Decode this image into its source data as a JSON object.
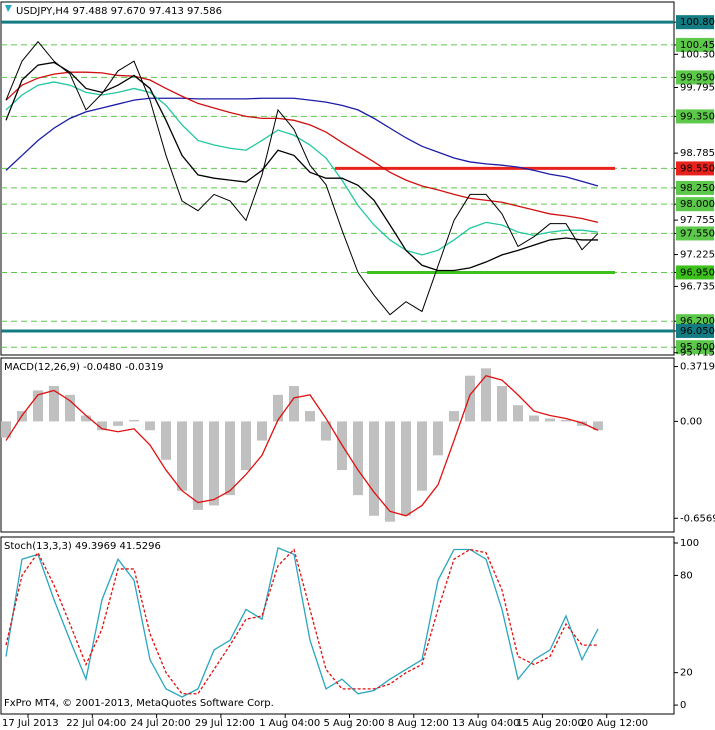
{
  "chart_data": [
    {
      "type": "line",
      "title": "USDJPY,H4  97.488 97.670 97.413 97.586",
      "ylim": [
        95.68,
        101.11
      ],
      "yticks": [
        {
          "value": 100.8,
          "label": "100.800",
          "color": "#137b82",
          "style": "solid"
        },
        {
          "value": 100.45,
          "label": "100.450",
          "color": "#5cc94a",
          "style": "dashed"
        },
        {
          "value": 100.305,
          "label": "100.305"
        },
        {
          "value": 99.95,
          "label": "99.950",
          "color": "#5cc94a",
          "style": "dashed"
        },
        {
          "value": 99.795,
          "label": "99.795"
        },
        {
          "value": 99.35,
          "label": "99.350",
          "color": "#5cc94a",
          "style": "dashed"
        },
        {
          "value": 98.785,
          "label": "98.785"
        },
        {
          "value": 98.55,
          "label": "98.550",
          "color": "#e8231e",
          "style": "segment"
        },
        {
          "value": 98.25,
          "label": "98.250",
          "color": "#5cc94a",
          "style": "dashed"
        },
        {
          "value": 98.0,
          "label": "98.000",
          "color": "#5cc94a",
          "style": "dashed"
        },
        {
          "value": 97.755,
          "label": "97.755"
        },
        {
          "value": 97.55,
          "label": "97.550",
          "color": "#5cc94a",
          "style": "dashed"
        },
        {
          "value": 97.225,
          "label": "97.225"
        },
        {
          "value": 96.95,
          "label": "96.950",
          "color": "#3cc01c",
          "style": "segment"
        },
        {
          "value": 96.735,
          "label": "96.735"
        },
        {
          "value": 96.2,
          "label": "96.200",
          "color": "#5cc94a",
          "style": "dashed"
        },
        {
          "value": 96.05,
          "label": "96.050",
          "color": "#137b82",
          "style": "solid"
        },
        {
          "value": 95.8,
          "label": "95.800",
          "color": "#5cc94a",
          "style": "dashed"
        },
        {
          "value": 95.715,
          "label": "95.715"
        }
      ],
      "series": [
        {
          "color": "#1c1ca8",
          "values": [
            98.52,
            98.75,
            98.98,
            99.17,
            99.32,
            99.42,
            99.48,
            99.54,
            99.6,
            99.63,
            99.63,
            99.63,
            99.62,
            99.62,
            99.62,
            99.62,
            99.63,
            99.63,
            99.63,
            99.6,
            99.57,
            99.52,
            99.45,
            99.32,
            99.17,
            99.02,
            98.89,
            98.8,
            98.71,
            98.65,
            98.62,
            98.6,
            98.57,
            98.52,
            98.46,
            98.42,
            98.35,
            98.28
          ]
        },
        {
          "color": "#d01010",
          "values": [
            99.6,
            99.83,
            99.94,
            100.0,
            100.03,
            100.03,
            100.02,
            99.98,
            99.97,
            99.91,
            99.78,
            99.66,
            99.55,
            99.48,
            99.41,
            99.35,
            99.32,
            99.32,
            99.29,
            99.22,
            99.11,
            98.95,
            98.8,
            98.65,
            98.49,
            98.37,
            98.28,
            98.22,
            98.15,
            98.09,
            98.06,
            98.03,
            97.97,
            97.91,
            97.85,
            97.82,
            97.78,
            97.72
          ]
        },
        {
          "color": "#22c8a0",
          "values": [
            99.45,
            99.68,
            99.83,
            99.88,
            99.83,
            99.72,
            99.68,
            99.72,
            99.78,
            99.72,
            99.52,
            99.22,
            98.98,
            98.91,
            98.86,
            98.83,
            98.98,
            99.14,
            99.06,
            98.91,
            98.71,
            98.37,
            97.98,
            97.68,
            97.45,
            97.29,
            97.22,
            97.29,
            97.45,
            97.63,
            97.72,
            97.68,
            97.57,
            97.52,
            97.57,
            97.6,
            97.6,
            97.57
          ]
        },
        {
          "color": "#000000",
          "values": [
            99.29,
            99.91,
            100.14,
            100.18,
            100.03,
            99.78,
            99.72,
            99.83,
            99.98,
            99.78,
            99.29,
            98.75,
            98.45,
            98.4,
            98.37,
            98.34,
            98.52,
            98.83,
            98.75,
            98.49,
            98.4,
            98.4,
            98.29,
            98.06,
            97.68,
            97.29,
            97.06,
            96.98,
            96.98,
            97.02,
            97.11,
            97.22,
            97.29,
            97.37,
            97.45,
            97.48,
            97.45,
            97.45
          ]
        },
        {
          "color": "#000000",
          "values": [
            99.6,
            100.2,
            100.5,
            100.2,
            100.0,
            99.45,
            99.7,
            100.05,
            100.2,
            99.6,
            98.75,
            98.05,
            97.9,
            98.15,
            98.05,
            97.75,
            98.45,
            99.45,
            99.15,
            98.6,
            98.3,
            97.6,
            96.95,
            96.6,
            96.3,
            96.5,
            96.35,
            97.05,
            97.75,
            98.15,
            98.15,
            97.85,
            97.35,
            97.5,
            97.7,
            97.7,
            97.3,
            97.55
          ]
        }
      ]
    },
    {
      "type": "line",
      "title": "MACD(12,26,9) -0.0480 -0.0319",
      "ylim": [
        -0.75,
        0.43
      ],
      "yticks": [
        0.3719,
        {
          "value": 0,
          "label": "0.00"
        },
        -0.6569
      ],
      "series": [
        {
          "color": "#c0c0c0",
          "style": "bar",
          "values": [
            -0.11,
            0.07,
            0.21,
            0.24,
            0.18,
            0.04,
            -0.06,
            -0.03,
            0.01,
            -0.06,
            -0.26,
            -0.47,
            -0.6,
            -0.57,
            -0.5,
            -0.33,
            -0.13,
            0.18,
            0.24,
            0.07,
            -0.13,
            -0.33,
            -0.5,
            -0.64,
            -0.68,
            -0.64,
            -0.47,
            -0.23,
            0.07,
            0.31,
            0.36,
            0.24,
            0.11,
            0.04,
            0.02,
            0.01,
            -0.03,
            -0.06
          ]
        },
        {
          "color": "#e01010",
          "values": [
            -0.13,
            0.04,
            0.18,
            0.21,
            0.14,
            0.04,
            -0.05,
            -0.07,
            -0.05,
            -0.16,
            -0.33,
            -0.47,
            -0.55,
            -0.53,
            -0.47,
            -0.36,
            -0.23,
            0.01,
            0.16,
            0.18,
            0.02,
            -0.16,
            -0.33,
            -0.48,
            -0.61,
            -0.64,
            -0.57,
            -0.43,
            -0.13,
            0.18,
            0.31,
            0.28,
            0.18,
            0.07,
            0.04,
            0.02,
            -0.01,
            -0.06
          ]
        }
      ]
    },
    {
      "type": "line",
      "title": "Stoch(13,3,3) 49.3969 41.5296",
      "ylim": [
        -5.5,
        103.7
      ],
      "yticks": [
        100,
        80,
        20,
        0
      ],
      "footer": "FxPro MT4, © 2001-2013, MetaQuotes Software Corp.",
      "time_labels": [
        "17 Jul 2013",
        "22 Jul 04:00",
        "24 Jul 20:00",
        "29 Jul 12:00",
        "1 Aug 04:00",
        "5 Aug 20:00",
        "8 Aug 12:00",
        "13 Aug 04:00",
        "15 Aug 20:00",
        "20 Aug 12:00"
      ],
      "series": [
        {
          "color": "#2aa6c0",
          "values": [
            30,
            90,
            93,
            65,
            40,
            16,
            65,
            90,
            77,
            28,
            10,
            5,
            10,
            34,
            40,
            59,
            53,
            97,
            93,
            40,
            10,
            16,
            7,
            9,
            16,
            22,
            28,
            77,
            96,
            96,
            90,
            59,
            16,
            28,
            34,
            55,
            28,
            47
          ]
        },
        {
          "color": "#e01010",
          "style": "dashed",
          "values": [
            37,
            80,
            94,
            74,
            50,
            25,
            47,
            84,
            84,
            44,
            20,
            7,
            7,
            22,
            37,
            53,
            55,
            86,
            96,
            59,
            22,
            10,
            10,
            10,
            13,
            20,
            25,
            59,
            90,
            96,
            94,
            71,
            30,
            25,
            30,
            50,
            37,
            37
          ]
        }
      ]
    }
  ]
}
